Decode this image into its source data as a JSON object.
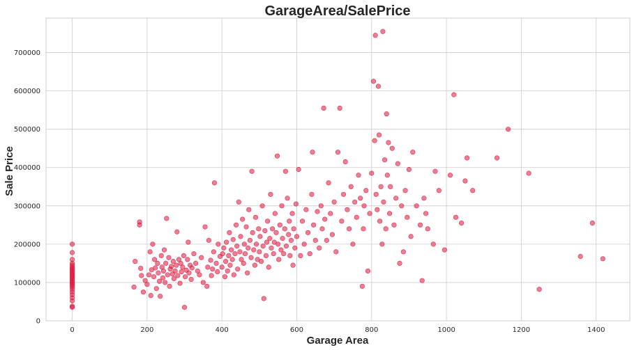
{
  "chart_data": {
    "type": "scatter",
    "title": "GarageArea/SalePrice",
    "xlabel": "Garage Area",
    "ylabel": "Sale Price",
    "xlim": [
      -70,
      1490
    ],
    "ylim": [
      0,
      790000
    ],
    "xticks": [
      0,
      200,
      400,
      600,
      800,
      1000,
      1200,
      1400
    ],
    "yticks": [
      0,
      100000,
      200000,
      300000,
      400000,
      500000,
      600000,
      700000
    ],
    "grid": true,
    "color": "#dc143c",
    "alpha": 0.55,
    "points": [
      [
        0,
        35000
      ],
      [
        0,
        38000
      ],
      [
        0,
        52000
      ],
      [
        0,
        60000
      ],
      [
        0,
        68000
      ],
      [
        0,
        75000
      ],
      [
        0,
        82000
      ],
      [
        0,
        88000
      ],
      [
        0,
        92000
      ],
      [
        0,
        96000
      ],
      [
        0,
        100000
      ],
      [
        0,
        104000
      ],
      [
        0,
        108000
      ],
      [
        0,
        112000
      ],
      [
        0,
        116000
      ],
      [
        0,
        120000
      ],
      [
        0,
        124000
      ],
      [
        0,
        128000
      ],
      [
        0,
        132000
      ],
      [
        0,
        136000
      ],
      [
        0,
        140000
      ],
      [
        0,
        145000
      ],
      [
        0,
        150000
      ],
      [
        0,
        160000
      ],
      [
        0,
        178000
      ],
      [
        0,
        200000
      ],
      [
        165,
        88000
      ],
      [
        168,
        155000
      ],
      [
        180,
        250000
      ],
      [
        180,
        258000
      ],
      [
        183,
        137000
      ],
      [
        185,
        118000
      ],
      [
        190,
        75000
      ],
      [
        195,
        105000
      ],
      [
        200,
        95000
      ],
      [
        205,
        120000
      ],
      [
        208,
        180000
      ],
      [
        210,
        66000
      ],
      [
        212,
        133000
      ],
      [
        215,
        200000
      ],
      [
        218,
        115000
      ],
      [
        220,
        160000
      ],
      [
        222,
        138000
      ],
      [
        225,
        84000
      ],
      [
        228,
        150000
      ],
      [
        230,
        125000
      ],
      [
        233,
        103000
      ],
      [
        235,
        64000
      ],
      [
        238,
        170000
      ],
      [
        240,
        140000
      ],
      [
        242,
        112000
      ],
      [
        244,
        130000
      ],
      [
        246,
        185000
      ],
      [
        248,
        100000
      ],
      [
        250,
        150000
      ],
      [
        252,
        267000
      ],
      [
        255,
        120000
      ],
      [
        258,
        165000
      ],
      [
        260,
        90000
      ],
      [
        262,
        135000
      ],
      [
        265,
        142000
      ],
      [
        268,
        122000
      ],
      [
        270,
        155000
      ],
      [
        272,
        110000
      ],
      [
        275,
        130000
      ],
      [
        278,
        145000
      ],
      [
        280,
        232000
      ],
      [
        282,
        118000
      ],
      [
        285,
        160000
      ],
      [
        288,
        98000
      ],
      [
        290,
        150000
      ],
      [
        292,
        128000
      ],
      [
        295,
        140000
      ],
      [
        298,
        170000
      ],
      [
        300,
        35000
      ],
      [
        302,
        115000
      ],
      [
        305,
        132000
      ],
      [
        308,
        160000
      ],
      [
        310,
        205000
      ],
      [
        312,
        125000
      ],
      [
        315,
        145000
      ],
      [
        318,
        108000
      ],
      [
        320,
        138000
      ],
      [
        325,
        175000
      ],
      [
        330,
        150000
      ],
      [
        335,
        130000
      ],
      [
        340,
        120000
      ],
      [
        345,
        165000
      ],
      [
        350,
        100000
      ],
      [
        355,
        245000
      ],
      [
        360,
        90000
      ],
      [
        362,
        140000
      ],
      [
        365,
        210000
      ],
      [
        370,
        158000
      ],
      [
        372,
        118000
      ],
      [
        375,
        135000
      ],
      [
        378,
        180000
      ],
      [
        380,
        360000
      ],
      [
        385,
        150000
      ],
      [
        388,
        128000
      ],
      [
        390,
        200000
      ],
      [
        395,
        168000
      ],
      [
        400,
        140000
      ],
      [
        402,
        175000
      ],
      [
        405,
        190000
      ],
      [
        408,
        115000
      ],
      [
        410,
        155000
      ],
      [
        412,
        205000
      ],
      [
        415,
        130000
      ],
      [
        418,
        170000
      ],
      [
        420,
        230000
      ],
      [
        422,
        145000
      ],
      [
        425,
        185000
      ],
      [
        428,
        160000
      ],
      [
        430,
        212000
      ],
      [
        432,
        120000
      ],
      [
        435,
        175000
      ],
      [
        438,
        250000
      ],
      [
        440,
        195000
      ],
      [
        442,
        135000
      ],
      [
        445,
        310000
      ],
      [
        448,
        180000
      ],
      [
        450,
        220000
      ],
      [
        452,
        160000
      ],
      [
        455,
        265000
      ],
      [
        458,
        150000
      ],
      [
        460,
        200000
      ],
      [
        462,
        175000
      ],
      [
        465,
        245000
      ],
      [
        468,
        125000
      ],
      [
        470,
        190000
      ],
      [
        472,
        290000
      ],
      [
        475,
        210000
      ],
      [
        478,
        165000
      ],
      [
        480,
        390000
      ],
      [
        482,
        230000
      ],
      [
        485,
        185000
      ],
      [
        488,
        145000
      ],
      [
        490,
        270000
      ],
      [
        492,
        200000
      ],
      [
        495,
        160000
      ],
      [
        498,
        240000
      ],
      [
        500,
        180000
      ],
      [
        502,
        220000
      ],
      [
        505,
        155000
      ],
      [
        508,
        300000
      ],
      [
        510,
        195000
      ],
      [
        512,
        58000
      ],
      [
        515,
        235000
      ],
      [
        518,
        170000
      ],
      [
        520,
        205000
      ],
      [
        522,
        260000
      ],
      [
        525,
        140000
      ],
      [
        528,
        215000
      ],
      [
        530,
        330000
      ],
      [
        532,
        190000
      ],
      [
        535,
        240000
      ],
      [
        538,
        175000
      ],
      [
        540,
        205000
      ],
      [
        542,
        280000
      ],
      [
        545,
        230000
      ],
      [
        548,
        430000
      ],
      [
        550,
        200000
      ],
      [
        552,
        160000
      ],
      [
        555,
        250000
      ],
      [
        558,
        185000
      ],
      [
        560,
        300000
      ],
      [
        562,
        215000
      ],
      [
        565,
        175000
      ],
      [
        568,
        240000
      ],
      [
        570,
        390000
      ],
      [
        572,
        195000
      ],
      [
        575,
        320000
      ],
      [
        578,
        225000
      ],
      [
        580,
        260000
      ],
      [
        582,
        170000
      ],
      [
        585,
        210000
      ],
      [
        588,
        280000
      ],
      [
        590,
        145000
      ],
      [
        592,
        240000
      ],
      [
        595,
        190000
      ],
      [
        598,
        305000
      ],
      [
        600,
        220000
      ],
      [
        605,
        395000
      ],
      [
        610,
        170000
      ],
      [
        615,
        260000
      ],
      [
        620,
        200000
      ],
      [
        625,
        290000
      ],
      [
        630,
        230000
      ],
      [
        635,
        175000
      ],
      [
        640,
        330000
      ],
      [
        642,
        440000
      ],
      [
        645,
        250000
      ],
      [
        650,
        210000
      ],
      [
        655,
        285000
      ],
      [
        660,
        190000
      ],
      [
        665,
        300000
      ],
      [
        668,
        240000
      ],
      [
        672,
        555000
      ],
      [
        675,
        265000
      ],
      [
        680,
        210000
      ],
      [
        685,
        360000
      ],
      [
        690,
        280000
      ],
      [
        695,
        225000
      ],
      [
        700,
        310000
      ],
      [
        705,
        180000
      ],
      [
        710,
        440000
      ],
      [
        715,
        555000
      ],
      [
        720,
        260000
      ],
      [
        725,
        330000
      ],
      [
        730,
        415000
      ],
      [
        735,
        290000
      ],
      [
        740,
        240000
      ],
      [
        745,
        350000
      ],
      [
        750,
        200000
      ],
      [
        755,
        310000
      ],
      [
        760,
        270000
      ],
      [
        765,
        380000
      ],
      [
        770,
        320000
      ],
      [
        775,
        90000
      ],
      [
        778,
        240000
      ],
      [
        780,
        300000
      ],
      [
        785,
        340000
      ],
      [
        790,
        130000
      ],
      [
        795,
        280000
      ],
      [
        800,
        385000
      ],
      [
        805,
        625000
      ],
      [
        808,
        470000
      ],
      [
        810,
        745000
      ],
      [
        812,
        330000
      ],
      [
        815,
        290000
      ],
      [
        818,
        612000
      ],
      [
        820,
        485000
      ],
      [
        822,
        260000
      ],
      [
        825,
        350000
      ],
      [
        828,
        200000
      ],
      [
        830,
        755000
      ],
      [
        832,
        310000
      ],
      [
        835,
        420000
      ],
      [
        838,
        240000
      ],
      [
        840,
        540000
      ],
      [
        842,
        380000
      ],
      [
        845,
        465000
      ],
      [
        848,
        280000
      ],
      [
        850,
        350000
      ],
      [
        855,
        450000
      ],
      [
        860,
        250000
      ],
      [
        865,
        320000
      ],
      [
        870,
        410000
      ],
      [
        875,
        150000
      ],
      [
        880,
        300000
      ],
      [
        885,
        180000
      ],
      [
        890,
        340000
      ],
      [
        895,
        270000
      ],
      [
        900,
        395000
      ],
      [
        905,
        220000
      ],
      [
        910,
        440000
      ],
      [
        920,
        300000
      ],
      [
        930,
        250000
      ],
      [
        935,
        105000
      ],
      [
        940,
        320000
      ],
      [
        945,
        280000
      ],
      [
        950,
        240000
      ],
      [
        965,
        200000
      ],
      [
        970,
        390000
      ],
      [
        980,
        340000
      ],
      [
        995,
        185000
      ],
      [
        1010,
        380000
      ],
      [
        1020,
        590000
      ],
      [
        1025,
        270000
      ],
      [
        1040,
        255000
      ],
      [
        1050,
        365000
      ],
      [
        1055,
        425000
      ],
      [
        1070,
        340000
      ],
      [
        1135,
        425000
      ],
      [
        1165,
        500000
      ],
      [
        1220,
        385000
      ],
      [
        1248,
        82000
      ],
      [
        1358,
        168000
      ],
      [
        1390,
        255000
      ],
      [
        1418,
        162000
      ]
    ]
  }
}
